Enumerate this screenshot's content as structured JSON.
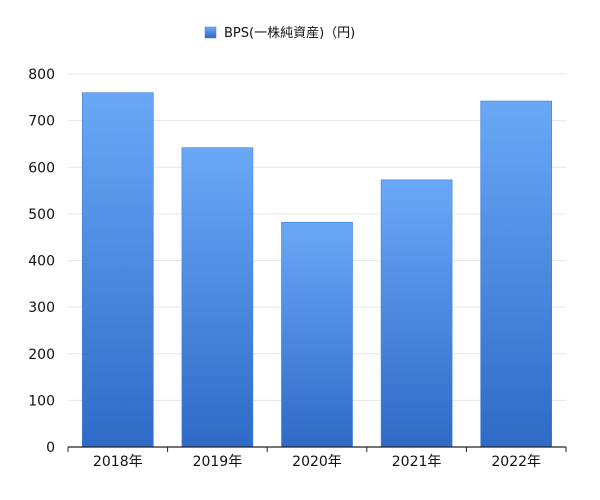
{
  "chart_data": {
    "type": "bar",
    "categories": [
      "2018年",
      "2019年",
      "2020年",
      "2021年",
      "2022年"
    ],
    "series": [
      {
        "name": "BPS(一株純資産)（円)",
        "values": [
          760,
          642,
          482,
          573,
          742
        ]
      }
    ],
    "title": "",
    "xlabel": "",
    "ylabel": "",
    "ylim": [
      0,
      800
    ],
    "yticks": [
      "0",
      "100",
      "200",
      "300",
      "400",
      "500",
      "600",
      "700",
      "800"
    ],
    "grid": true,
    "legend_position": "top-center",
    "colors": {
      "bar_top": "#6aa8f7",
      "bar_bottom": "#2f6ac6",
      "bar_edge": "#3f7fd6",
      "grid": "#e6e6e6",
      "axis": "#222222"
    }
  }
}
